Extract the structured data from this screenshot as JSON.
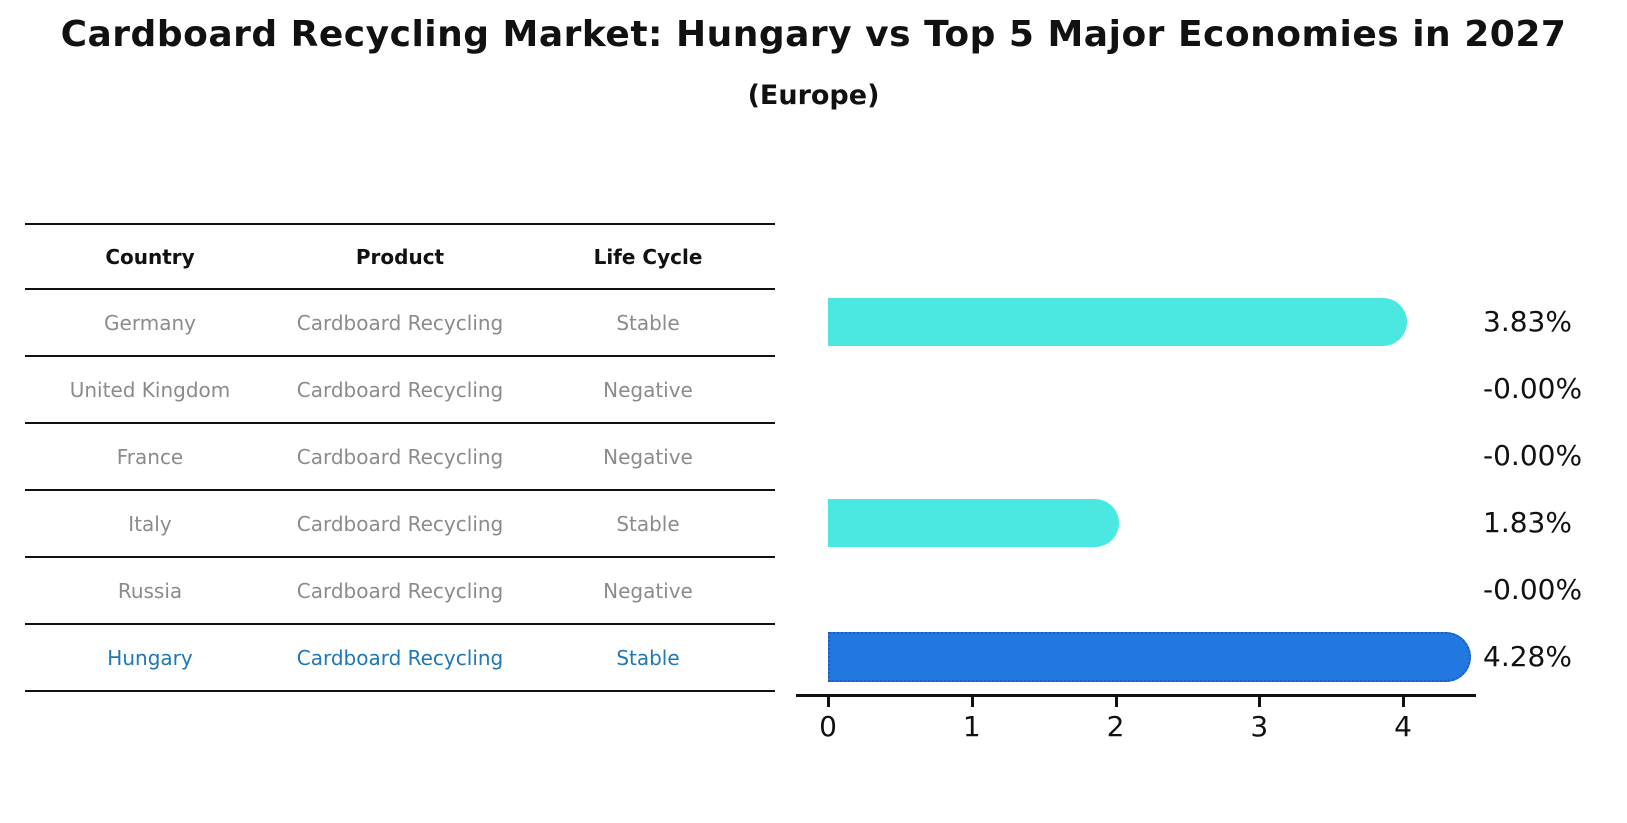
{
  "title": "Cardboard Recycling Market: Hungary vs Top 5 Major Economies in 2027",
  "subtitle": "(Europe)",
  "table": {
    "headers": [
      "Country",
      "Product",
      "Life Cycle"
    ],
    "rows": [
      {
        "country": "Germany",
        "product": "Cardboard Recycling",
        "life_cycle": "Stable",
        "highlight": false
      },
      {
        "country": "United Kingdom",
        "product": "Cardboard Recycling",
        "life_cycle": "Negative",
        "highlight": false
      },
      {
        "country": "France",
        "product": "Cardboard Recycling",
        "life_cycle": "Negative",
        "highlight": false
      },
      {
        "country": "Italy",
        "product": "Cardboard Recycling",
        "life_cycle": "Stable",
        "highlight": false
      },
      {
        "country": "Russia",
        "product": "Cardboard Recycling",
        "life_cycle": "Negative",
        "highlight": false
      },
      {
        "country": "Hungary",
        "product": "Cardboard Recycling",
        "life_cycle": "Stable",
        "highlight": true
      }
    ]
  },
  "chart_data": {
    "type": "bar",
    "orientation": "horizontal",
    "title": "Cardboard Recycling Market: Hungary vs Top 5 Major Economies in 2027 (Europe)",
    "categories": [
      "Germany",
      "United Kingdom",
      "France",
      "Italy",
      "Russia",
      "Hungary"
    ],
    "values": [
      3.83,
      -0.0,
      -0.0,
      1.83,
      -0.0,
      4.28
    ],
    "labels": [
      "3.83%",
      "-0.00%",
      "-0.00%",
      "1.83%",
      "-0.00%",
      "4.28%"
    ],
    "xticks": [
      0,
      1,
      2,
      3,
      4
    ],
    "xlim": [
      0,
      4.5
    ],
    "grid": false,
    "legend": "none",
    "highlight_index": 5
  },
  "colors": {
    "bar": "#4ae8e0",
    "highlight_bar": "#2277e0",
    "highlight_bar_border": "#1b5ec0",
    "highlight_text": "#1f77b4",
    "table_text": "#8b8b8b",
    "axis": "#111111"
  }
}
